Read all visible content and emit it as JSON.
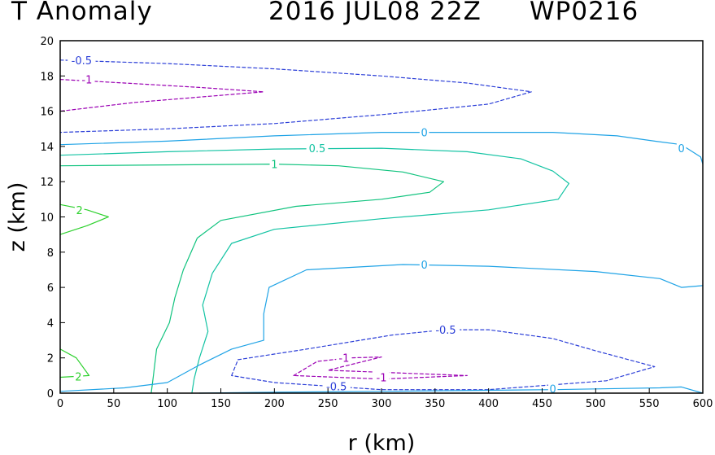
{
  "header": {
    "field": "T Anomaly",
    "datetime": "2016 JUL08 22Z",
    "storm_id": "WP0216"
  },
  "chart_data": {
    "type": "contour",
    "title": "T Anomaly",
    "xlabel": "r (km)",
    "ylabel": "z (km)",
    "xlim": [
      0,
      600
    ],
    "ylim": [
      0,
      20
    ],
    "xticks": [
      0,
      50,
      100,
      150,
      200,
      250,
      300,
      350,
      400,
      450,
      500,
      550,
      600
    ],
    "yticks": [
      0,
      2,
      4,
      6,
      8,
      10,
      12,
      14,
      16,
      18,
      20
    ],
    "grid": false,
    "contour_colors": {
      "-1": "#9b00b4",
      "-0.5": "#2c3fd8",
      "0": "#1fa3e6",
      "0.5": "#13c3a3",
      "1": "#10c37e",
      "2": "#2ed12e"
    },
    "contours": [
      {
        "level": -0.5,
        "label": "-0.5",
        "dashed": true,
        "closed": false,
        "points": [
          [
            0,
            18.9
          ],
          [
            100,
            18.7
          ],
          [
            200,
            18.4
          ],
          [
            300,
            18.0
          ],
          [
            380,
            17.6
          ],
          [
            440,
            17.1
          ],
          [
            400,
            16.4
          ],
          [
            300,
            15.8
          ],
          [
            200,
            15.3
          ],
          [
            100,
            15.0
          ],
          [
            0,
            14.8
          ]
        ],
        "labels": [
          [
            20,
            18.9
          ]
        ]
      },
      {
        "level": -1,
        "label": "-1",
        "dashed": true,
        "closed": false,
        "points": [
          [
            0,
            17.8
          ],
          [
            60,
            17.6
          ],
          [
            130,
            17.35
          ],
          [
            190,
            17.1
          ],
          [
            140,
            16.85
          ],
          [
            70,
            16.5
          ],
          [
            0,
            16.0
          ]
        ],
        "labels": [
          [
            25,
            17.8
          ]
        ]
      },
      {
        "level": 0,
        "label": "0",
        "dashed": false,
        "closed": false,
        "points": [
          [
            0,
            14.1
          ],
          [
            100,
            14.3
          ],
          [
            200,
            14.6
          ],
          [
            300,
            14.8
          ],
          [
            400,
            14.8
          ],
          [
            460,
            14.8
          ],
          [
            520,
            14.6
          ],
          [
            555,
            14.3
          ],
          [
            580,
            14.1
          ],
          [
            598,
            13.4
          ],
          [
            600,
            13.0
          ]
        ],
        "labels": [
          [
            340,
            14.8
          ],
          [
            580,
            13.9
          ]
        ]
      },
      {
        "level": 0.5,
        "label": "0.5",
        "dashed": false,
        "closed": false,
        "points": [
          [
            0,
            13.5
          ],
          [
            100,
            13.7
          ],
          [
            200,
            13.85
          ],
          [
            300,
            13.9
          ],
          [
            380,
            13.7
          ],
          [
            430,
            13.3
          ],
          [
            460,
            12.6
          ],
          [
            475,
            11.9
          ],
          [
            465,
            11.0
          ],
          [
            400,
            10.4
          ],
          [
            300,
            9.9
          ],
          [
            200,
            9.3
          ],
          [
            160,
            8.5
          ],
          [
            142,
            6.8
          ],
          [
            133,
            5.0
          ],
          [
            138,
            3.5
          ],
          [
            130,
            2.0
          ],
          [
            125,
            0.8
          ],
          [
            123,
            0.0
          ]
        ],
        "labels": [
          [
            240,
            13.9
          ]
        ]
      },
      {
        "level": 1,
        "label": "1",
        "dashed": false,
        "closed": false,
        "points": [
          [
            0,
            12.9
          ],
          [
            100,
            12.95
          ],
          [
            200,
            13.0
          ],
          [
            260,
            12.9
          ],
          [
            320,
            12.55
          ],
          [
            358,
            12.0
          ],
          [
            345,
            11.4
          ],
          [
            300,
            11.0
          ],
          [
            220,
            10.6
          ],
          [
            150,
            9.8
          ],
          [
            128,
            8.8
          ],
          [
            115,
            7.0
          ],
          [
            107,
            5.4
          ],
          [
            102,
            4.0
          ],
          [
            90,
            2.5
          ],
          [
            87,
            1.0
          ],
          [
            85,
            0.0
          ]
        ],
        "labels": [
          [
            200,
            13.0
          ]
        ]
      },
      {
        "level": 2,
        "label": "2",
        "dashed": false,
        "closed": false,
        "points": [
          [
            0,
            10.7
          ],
          [
            25,
            10.4
          ],
          [
            45,
            10.0
          ],
          [
            25,
            9.5
          ],
          [
            0,
            9.0
          ]
        ],
        "labels": [
          [
            18,
            10.4
          ]
        ]
      },
      {
        "level": 2,
        "label": "2",
        "dashed": false,
        "closed": false,
        "points": [
          [
            0,
            2.5
          ],
          [
            15,
            2.0
          ],
          [
            27,
            1.0
          ],
          [
            15,
            0.95
          ],
          [
            0,
            0.9
          ]
        ],
        "labels": [
          [
            17,
            0.95
          ]
        ]
      },
      {
        "level": 0,
        "label": "0",
        "dashed": false,
        "closed": false,
        "points": [
          [
            0,
            0.1
          ],
          [
            60,
            0.3
          ],
          [
            100,
            0.6
          ],
          [
            130,
            1.6
          ],
          [
            160,
            2.5
          ],
          [
            190,
            3.0
          ],
          [
            190,
            4.5
          ],
          [
            195,
            6.0
          ],
          [
            230,
            7.0
          ],
          [
            320,
            7.3
          ],
          [
            400,
            7.2
          ],
          [
            500,
            6.9
          ],
          [
            560,
            6.5
          ],
          [
            580,
            6.0
          ],
          [
            600,
            6.1
          ]
        ],
        "labels": [
          [
            340,
            7.3
          ]
        ]
      },
      {
        "level": -0.5,
        "label": "-0.5",
        "dashed": true,
        "closed": true,
        "points": [
          [
            160,
            1.0
          ],
          [
            166,
            1.9
          ],
          [
            230,
            2.5
          ],
          [
            310,
            3.3
          ],
          [
            360,
            3.6
          ],
          [
            400,
            3.6
          ],
          [
            460,
            3.1
          ],
          [
            500,
            2.4
          ],
          [
            555,
            1.5
          ],
          [
            510,
            0.7
          ],
          [
            400,
            0.2
          ],
          [
            300,
            0.2
          ],
          [
            200,
            0.6
          ],
          [
            160,
            1.0
          ]
        ],
        "labels": [
          [
            360,
            3.6
          ],
          [
            258,
            0.4
          ]
        ]
      },
      {
        "level": -1,
        "label": "-1",
        "dashed": true,
        "closed": true,
        "points": [
          [
            218,
            1.0
          ],
          [
            240,
            1.8
          ],
          [
            270,
            2.0
          ],
          [
            300,
            2.05
          ],
          [
            250,
            1.3
          ],
          [
            380,
            1.0
          ],
          [
            300,
            0.8
          ],
          [
            218,
            1.0
          ]
        ],
        "labels": [
          [
            265,
            2.0
          ],
          [
            300,
            0.9
          ]
        ]
      },
      {
        "level": 0,
        "label": "0",
        "dashed": false,
        "closed": false,
        "points": [
          [
            130,
            0.0
          ],
          [
            200,
            0.05
          ],
          [
            300,
            0.1
          ],
          [
            460,
            0.2
          ],
          [
            560,
            0.3
          ],
          [
            580,
            0.35
          ],
          [
            600,
            0.0
          ]
        ],
        "labels": [
          [
            460,
            0.25
          ]
        ]
      }
    ]
  }
}
